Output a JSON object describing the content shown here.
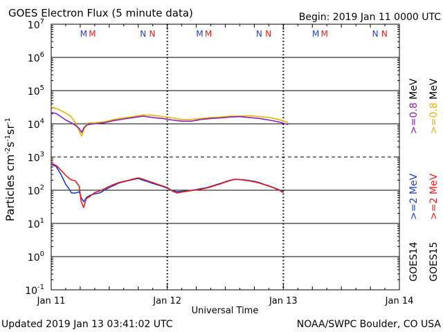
{
  "header": {
    "title": "GOES Electron Flux (5 minute data)",
    "begin": "Begin: 2019 Jan 11 0000 UTC"
  },
  "footer": {
    "updated": "Updated 2019 Jan 13 03:41:02 UTC",
    "source": "NOAA/SWPC Boulder, CO USA"
  },
  "colors": {
    "goes14_2mev": "#1c3fd0",
    "goes15_2mev": "#e81c1c",
    "goes14_08mev": "#8a1fb4",
    "goes15_08mev": "#e6b400",
    "marker_m14": "#1c3fd0",
    "marker_m15": "#e81c1c",
    "marker_n14": "#1c3fd0",
    "marker_n15": "#e81c1c"
  },
  "chart_data": {
    "type": "line",
    "title": "GOES Electron Flux (5 minute data)",
    "xlabel": "Universal Time",
    "ylabel": "Particles cm-2 s-1 sr-1",
    "x_unit": "hours since 2019 Jan 11 0000 UTC",
    "xlim": [
      0,
      72
    ],
    "yscale": "log",
    "ylim_exponent": [
      -1,
      7
    ],
    "x_ticks": [
      {
        "hour": 0,
        "label": "Jan 11"
      },
      {
        "hour": 24,
        "label": "Jan 12"
      },
      {
        "hour": 48,
        "label": "Jan 13"
      },
      {
        "hour": 72,
        "label": "Jan 14"
      }
    ],
    "y_ticks": [
      {
        "exp": 7,
        "base": "10",
        "sup": "7"
      },
      {
        "exp": 6,
        "base": "10",
        "sup": "6"
      },
      {
        "exp": 5,
        "base": "10",
        "sup": "5"
      },
      {
        "exp": 4,
        "base": "10",
        "sup": "4"
      },
      {
        "exp": 3,
        "base": "10",
        "sup": "3"
      },
      {
        "exp": 2,
        "base": "10",
        "sup": "2"
      },
      {
        "exp": 1,
        "base": "10",
        "sup": "1"
      },
      {
        "exp": 0,
        "base": "10",
        "sup": "0"
      },
      {
        "exp": -1,
        "base": "10",
        "sup": "-1"
      }
    ],
    "threshold_lines": [
      {
        "value": 1000,
        "style": "dashed"
      }
    ],
    "day_markers": [
      {
        "hour": 0,
        "labels": [
          "M",
          "M",
          "N",
          "N"
        ],
        "positions": [
          6.7,
          8.5,
          19.0,
          20.9
        ]
      },
      {
        "hour": 24,
        "labels": [
          "M",
          "M",
          "N",
          "N"
        ],
        "positions": [
          30.7,
          32.5,
          43.0,
          44.9
        ]
      },
      {
        "hour": 48,
        "labels": [
          "M",
          "M",
          "N",
          "N"
        ],
        "positions": [
          54.7,
          56.5,
          67.0,
          68.9
        ]
      }
    ],
    "series": [
      {
        "name": ">=0.8 MeV GOES15",
        "satellite": "GOES15",
        "energy": ">=0.8 MeV",
        "color": "#e6b400",
        "points": [
          [
            0,
            32000
          ],
          [
            1,
            29000
          ],
          [
            2,
            25000
          ],
          [
            3,
            21000
          ],
          [
            4,
            17000
          ],
          [
            5,
            11000
          ],
          [
            5.8,
            6000
          ],
          [
            6.3,
            4300
          ],
          [
            6.8,
            7000
          ],
          [
            7.5,
            10500
          ],
          [
            9,
            10800
          ],
          [
            11,
            11500
          ],
          [
            13,
            13500
          ],
          [
            15,
            15000
          ],
          [
            17,
            16500
          ],
          [
            19,
            18500
          ],
          [
            21,
            18000
          ],
          [
            23,
            16500
          ],
          [
            25,
            15000
          ],
          [
            27,
            13500
          ],
          [
            29,
            13500
          ],
          [
            31,
            14500
          ],
          [
            33,
            15500
          ],
          [
            35,
            16000
          ],
          [
            37,
            17000
          ],
          [
            39,
            17000
          ],
          [
            41,
            17500
          ],
          [
            43,
            16500
          ],
          [
            45,
            15500
          ],
          [
            47,
            13500
          ],
          [
            49,
            11000
          ]
        ]
      },
      {
        "name": ">=0.8 MeV GOES14",
        "satellite": "GOES14",
        "energy": ">=0.8 MeV",
        "color": "#8a1fb4",
        "points": [
          [
            0,
            22000
          ],
          [
            1,
            20500
          ],
          [
            2,
            16500
          ],
          [
            3,
            13000
          ],
          [
            4,
            11000
          ],
          [
            5,
            9000
          ],
          [
            5.8,
            7200
          ],
          [
            6.3,
            5500
          ],
          [
            6.8,
            7800
          ],
          [
            7.5,
            9500
          ],
          [
            9,
            10000
          ],
          [
            11,
            10800
          ],
          [
            13,
            12500
          ],
          [
            15,
            14000
          ],
          [
            17,
            15500
          ],
          [
            19,
            17000
          ],
          [
            21,
            15500
          ],
          [
            23,
            14500
          ],
          [
            25,
            13000
          ],
          [
            27,
            12000
          ],
          [
            29,
            12000
          ],
          [
            31,
            13500
          ],
          [
            33,
            14500
          ],
          [
            35,
            15000
          ],
          [
            37,
            16000
          ],
          [
            39,
            16500
          ],
          [
            41,
            15500
          ],
          [
            43,
            14500
          ],
          [
            45,
            13000
          ],
          [
            47,
            11500
          ],
          [
            49,
            9500
          ]
        ]
      },
      {
        "name": ">=2 MeV GOES14",
        "satellite": "GOES14",
        "energy": ">=2 MeV",
        "color": "#1c3fd0",
        "points": [
          [
            0,
            600
          ],
          [
            1,
            520
          ],
          [
            2,
            300
          ],
          [
            3,
            150
          ],
          [
            3.7,
            110
          ],
          [
            4.2,
            82
          ],
          [
            5,
            82
          ],
          [
            5.8,
            90
          ],
          [
            6.2,
            60
          ],
          [
            6.7,
            45
          ],
          [
            7.3,
            60
          ],
          [
            8,
            70
          ],
          [
            9,
            78
          ],
          [
            10,
            82
          ],
          [
            11,
            100
          ],
          [
            12,
            120
          ],
          [
            13,
            140
          ],
          [
            14,
            165
          ],
          [
            15,
            180
          ],
          [
            16,
            195
          ],
          [
            17,
            210
          ],
          [
            18,
            225
          ],
          [
            19,
            200
          ],
          [
            20,
            180
          ],
          [
            21,
            160
          ],
          [
            22,
            145
          ],
          [
            23,
            130
          ],
          [
            24,
            115
          ],
          [
            25,
            98
          ],
          [
            26,
            90
          ],
          [
            27,
            92
          ],
          [
            28,
            95
          ],
          [
            29,
            100
          ],
          [
            30,
            105
          ],
          [
            31,
            112
          ],
          [
            32,
            118
          ],
          [
            33,
            130
          ],
          [
            34,
            145
          ],
          [
            35,
            160
          ],
          [
            36,
            180
          ],
          [
            37,
            200
          ],
          [
            38,
            215
          ],
          [
            39,
            210
          ],
          [
            40,
            205
          ],
          [
            41,
            195
          ],
          [
            42,
            185
          ],
          [
            43,
            170
          ],
          [
            44,
            150
          ],
          [
            45,
            135
          ],
          [
            46,
            120
          ],
          [
            47,
            105
          ],
          [
            48,
            90
          ]
        ]
      },
      {
        "name": ">=2 MeV GOES15",
        "satellite": "GOES15",
        "energy": ">=2 MeV",
        "color": "#e81c1c",
        "points": [
          [
            0,
            650
          ],
          [
            1,
            560
          ],
          [
            2,
            400
          ],
          [
            3,
            280
          ],
          [
            4,
            210
          ],
          [
            5,
            190
          ],
          [
            5.8,
            130
          ],
          [
            6.2,
            45
          ],
          [
            6.7,
            30
          ],
          [
            7.2,
            55
          ],
          [
            8,
            65
          ],
          [
            9,
            85
          ],
          [
            10,
            95
          ],
          [
            11,
            110
          ],
          [
            12,
            130
          ],
          [
            13,
            150
          ],
          [
            14,
            170
          ],
          [
            15,
            185
          ],
          [
            16,
            200
          ],
          [
            17,
            220
          ],
          [
            18,
            235
          ],
          [
            19,
            215
          ],
          [
            20,
            190
          ],
          [
            21,
            170
          ],
          [
            22,
            150
          ],
          [
            23,
            135
          ],
          [
            24,
            120
          ],
          [
            25,
            95
          ],
          [
            26,
            82
          ],
          [
            27,
            88
          ],
          [
            28,
            92
          ],
          [
            29,
            97
          ],
          [
            30,
            102
          ],
          [
            31,
            108
          ],
          [
            32,
            115
          ],
          [
            33,
            126
          ],
          [
            34,
            140
          ],
          [
            35,
            155
          ],
          [
            36,
            175
          ],
          [
            37,
            195
          ],
          [
            38,
            212
          ],
          [
            39,
            208
          ],
          [
            40,
            200
          ],
          [
            41,
            190
          ],
          [
            42,
            178
          ],
          [
            43,
            165
          ],
          [
            44,
            148
          ],
          [
            45,
            132
          ],
          [
            46,
            118
          ],
          [
            47,
            102
          ],
          [
            48,
            85
          ]
        ]
      }
    ],
    "legend": {
      "groups": [
        {
          "satellite": "GOES14",
          "items": [
            {
              "label": ">=2",
              "unit": "MeV",
              "color": "#1c3fd0"
            },
            {
              "label": ">=0.8",
              "unit": "MeV",
              "color": "#8a1fb4"
            }
          ]
        },
        {
          "satellite": "GOES15",
          "items": [
            {
              "label": ">=2",
              "unit": "MeV",
              "color": "#e81c1c"
            },
            {
              "label": ">=0.8",
              "unit": "MeV",
              "color": "#e6b400"
            }
          ]
        }
      ],
      "placement": "right, vertical text"
    }
  }
}
